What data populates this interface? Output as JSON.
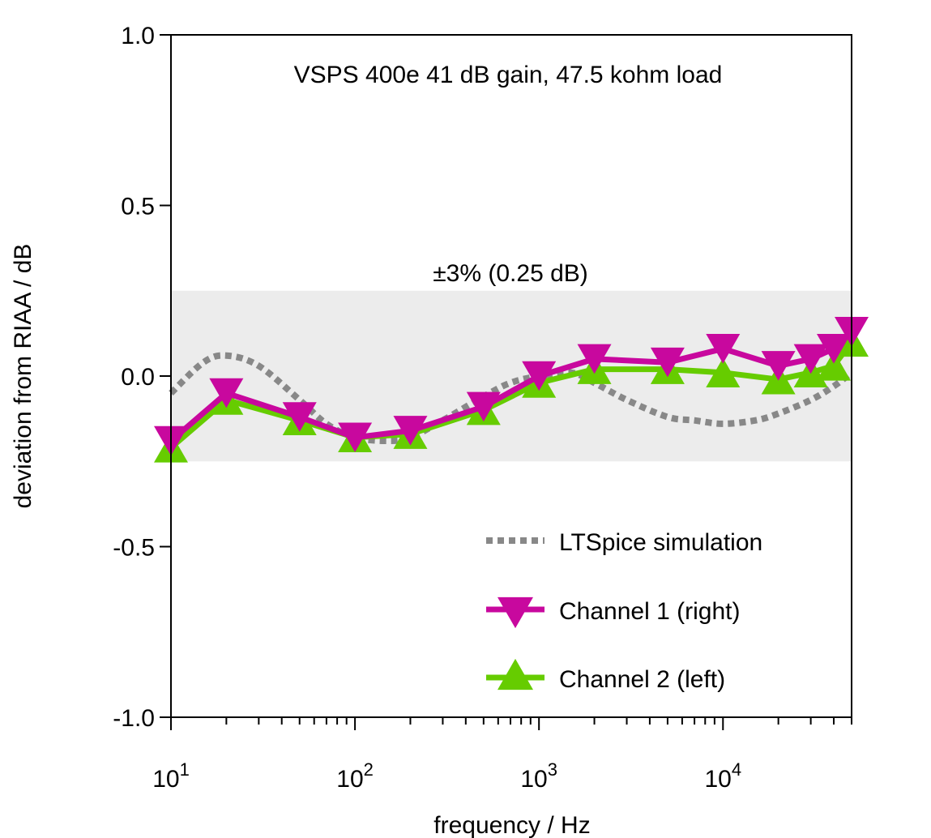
{
  "chart_data": {
    "type": "line",
    "title": "VSPS 400e 41 dB gain, 47.5 kohm load",
    "xlabel": "frequency / Hz",
    "ylabel": "deviation from RIAA / dB",
    "x_scale": "log",
    "xlim": [
      10,
      50000
    ],
    "ylim": [
      -1.0,
      1.0
    ],
    "y_ticks": [
      "-1.0",
      "-0.5",
      "0.0",
      "0.5",
      "1.0"
    ],
    "x_ticks": [
      {
        "value": 10,
        "base": "10",
        "exp": "1"
      },
      {
        "value": 100,
        "base": "10",
        "exp": "2"
      },
      {
        "value": 1000,
        "base": "10",
        "exp": "3"
      },
      {
        "value": 10000,
        "base": "10",
        "exp": "4"
      }
    ],
    "band": {
      "low": -0.25,
      "high": 0.25,
      "label": "±3% (0.25 dB)",
      "color": "#ececec"
    },
    "series": [
      {
        "name": "LTSpice simulation",
        "kind": "dotted",
        "color": "#888888",
        "x": [
          10,
          15,
          20,
          30,
          50,
          70,
          100,
          150,
          200,
          300,
          500,
          700,
          1000,
          1500,
          2000,
          3000,
          5000,
          7000,
          10000,
          15000,
          20000,
          30000,
          40000,
          50000
        ],
        "y": [
          -0.05,
          0.04,
          0.06,
          0.03,
          -0.07,
          -0.14,
          -0.18,
          -0.19,
          -0.18,
          -0.13,
          -0.06,
          -0.02,
          0.0,
          0.01,
          -0.02,
          -0.07,
          -0.12,
          -0.13,
          -0.14,
          -0.13,
          -0.11,
          -0.07,
          -0.03,
          0.01
        ]
      },
      {
        "name": "Channel 1 (right)",
        "kind": "marker-down",
        "color": "#c8089e",
        "x": [
          10,
          20,
          50,
          100,
          200,
          500,
          1000,
          2000,
          5000,
          10000,
          20000,
          30000,
          40000,
          50000
        ],
        "y": [
          -0.19,
          -0.05,
          -0.12,
          -0.18,
          -0.16,
          -0.09,
          0.0,
          0.05,
          0.04,
          0.08,
          0.03,
          0.05,
          0.08,
          0.13
        ]
      },
      {
        "name": "Channel 2 (left)",
        "kind": "marker-up",
        "color": "#66cc00",
        "x": [
          10,
          20,
          50,
          100,
          200,
          500,
          1000,
          2000,
          5000,
          10000,
          20000,
          30000,
          40000,
          50000
        ],
        "y": [
          -0.21,
          -0.07,
          -0.13,
          -0.18,
          -0.17,
          -0.1,
          -0.02,
          0.02,
          0.02,
          0.01,
          -0.01,
          0.01,
          0.03,
          0.1
        ]
      }
    ],
    "legend": {
      "position": "bottom-right",
      "order": [
        "LTSpice simulation",
        "Channel 1 (right)",
        "Channel 2 (left)"
      ]
    },
    "grid": false
  }
}
